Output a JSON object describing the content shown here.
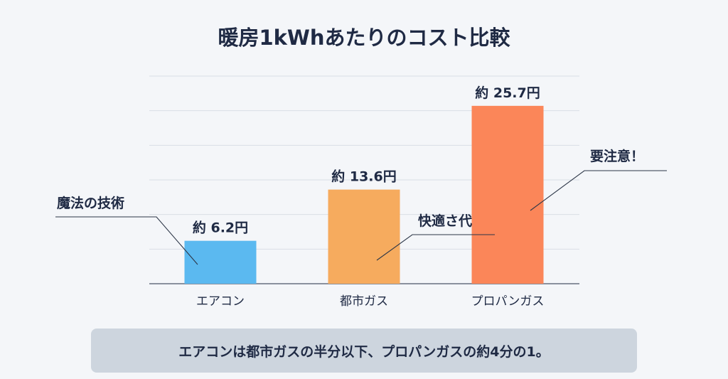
{
  "chart_data": {
    "type": "bar",
    "title": "暖房1kWhあたりのコスト比較",
    "categories": [
      "エアコン",
      "都市ガス",
      "プロパンガス"
    ],
    "values": [
      6.2,
      13.6,
      25.7
    ],
    "value_labels": [
      "約 6.2円",
      "約 13.6円",
      "約 25.7円"
    ],
    "colors": [
      "#5bb9f0",
      "#f6ab5e",
      "#fb8659"
    ],
    "ylim": [
      0,
      30
    ],
    "grid": true,
    "annotations": [
      "魔法の技術",
      "快適さ代",
      "要注意！"
    ]
  },
  "summary": "エアコンは都市ガスの半分以下、プロパンガスの約4分の1。"
}
